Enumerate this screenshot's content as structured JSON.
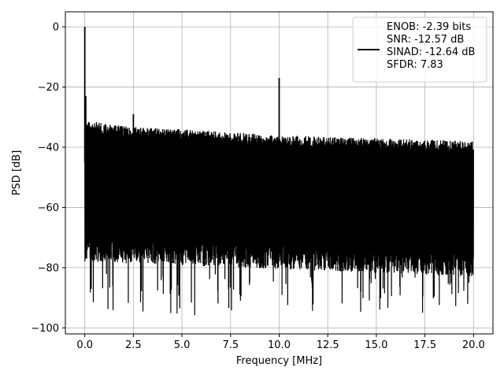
{
  "chart_data": {
    "type": "line",
    "title": "",
    "xlabel": "Frequency [MHz]",
    "ylabel": "PSD [dB]",
    "xlim": [
      -1.0,
      21.0
    ],
    "ylim": [
      -102.0,
      5.0
    ],
    "xticks": [
      0.0,
      2.5,
      5.0,
      7.5,
      10.0,
      12.5,
      15.0,
      17.5,
      20.0
    ],
    "xtick_labels": [
      "0.0",
      "2.5",
      "5.0",
      "7.5",
      "10.0",
      "12.5",
      "15.0",
      "17.5",
      "20.0"
    ],
    "yticks": [
      0,
      -20,
      -40,
      -60,
      -80,
      -100
    ],
    "ytick_labels": [
      "0",
      "−20",
      "−40",
      "−60",
      "−80",
      "−100"
    ],
    "grid": true,
    "legend_position": "top-right",
    "legend_lines": [
      "ENOB: -2.39 bits",
      "SNR: -12.57 dB",
      "SINAD: -12.64 dB",
      "SFDR: 7.83"
    ],
    "series": [
      {
        "color": "#000000",
        "noise_floor": {
          "x_range": [
            0.0,
            20.0
          ],
          "upper_envelope": [
            [
              0.0,
              -31
            ],
            [
              1.0,
              -32
            ],
            [
              2.0,
              -33
            ],
            [
              5.0,
              -34
            ],
            [
              10.0,
              -36
            ],
            [
              15.0,
              -37
            ],
            [
              20.0,
              -38
            ]
          ],
          "body_lower": [
            [
              0.0,
              -70
            ],
            [
              20.0,
              -75
            ]
          ],
          "deep_dips_min": -96
        },
        "peaks": [
          {
            "x": 0.0,
            "y": 0
          },
          {
            "x": 0.05,
            "y": -23
          },
          {
            "x": 2.5,
            "y": -29
          },
          {
            "x": 10.0,
            "y": -17
          }
        ]
      }
    ]
  }
}
